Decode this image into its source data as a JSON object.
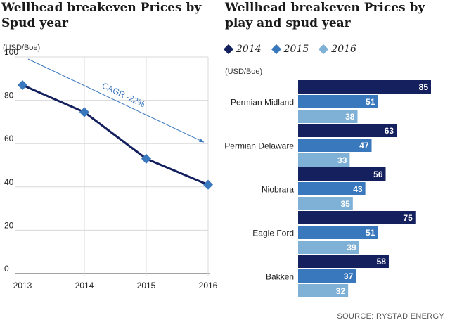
{
  "left_title": "Wellhead breakeven Prices by Spud year",
  "right_title": "Wellhead breakeven Prices by play and spud year",
  "source": "SOURCE: RYSTAD ENERGY",
  "colors": {
    "y2014": "#14215e",
    "y2015": "#3a78bd",
    "y2016": "#7fb1d7",
    "grid": "#d8d8d8"
  },
  "chart_data": [
    {
      "type": "line",
      "ylabel": "(USD/Boe)",
      "x": [
        "2013",
        "2014",
        "2015",
        "2016"
      ],
      "series": [
        {
          "values": [
            87,
            74.5,
            53,
            41
          ]
        }
      ],
      "trend": {
        "label": "CAGR -22%",
        "start": [
          "2013",
          100
        ],
        "end": [
          "2016",
          60
        ]
      },
      "ylim": [
        0,
        100
      ],
      "yticks": [
        0,
        20,
        40,
        60,
        80,
        100
      ],
      "grid": true
    },
    {
      "type": "bar",
      "orientation": "horizontal",
      "ylabel": "(USD/Boe)",
      "categories": [
        "Permian Midland",
        "Permian Delaware",
        "Niobrara",
        "Eagle Ford",
        "Bakken"
      ],
      "series": [
        {
          "name": "2014",
          "values": [
            85,
            63,
            56,
            75,
            58
          ]
        },
        {
          "name": "2015",
          "values": [
            51,
            47,
            43,
            51,
            37
          ]
        },
        {
          "name": "2016",
          "values": [
            38,
            33,
            35,
            39,
            32
          ]
        }
      ],
      "legend": "top"
    }
  ]
}
